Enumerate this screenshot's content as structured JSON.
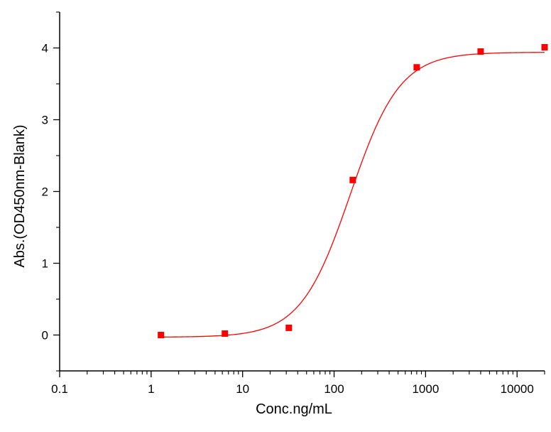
{
  "chart_data": {
    "type": "scatter",
    "xlabel": "Conc.ng/mL",
    "ylabel": "Abs.(OD450nm-Blank)",
    "xscale": "log",
    "xlim": [
      0.1,
      20000
    ],
    "ylim": [
      -0.5,
      4.5
    ],
    "x_ticks": [
      0.1,
      1,
      10,
      100,
      1000,
      10000
    ],
    "x_tick_labels": [
      "0.1",
      "1",
      "10",
      "100",
      "1000",
      "10000"
    ],
    "y_ticks": [
      0,
      1,
      2,
      3,
      4
    ],
    "y_tick_labels": [
      "0",
      "1",
      "2",
      "3",
      "4"
    ],
    "grid": false,
    "colors": {
      "series": "#ff0000",
      "axis": "#000000"
    },
    "series": [
      {
        "marker": "square",
        "x": [
          1.28,
          6.4,
          32,
          160,
          800,
          4000,
          20000
        ],
        "y": [
          0.0,
          0.02,
          0.1,
          2.16,
          3.73,
          3.95,
          4.01
        ]
      }
    ],
    "fit_curve": {
      "model": "4PL",
      "bottom": -0.03,
      "top": 3.94,
      "ec50": 150,
      "hill": 1.6
    }
  }
}
